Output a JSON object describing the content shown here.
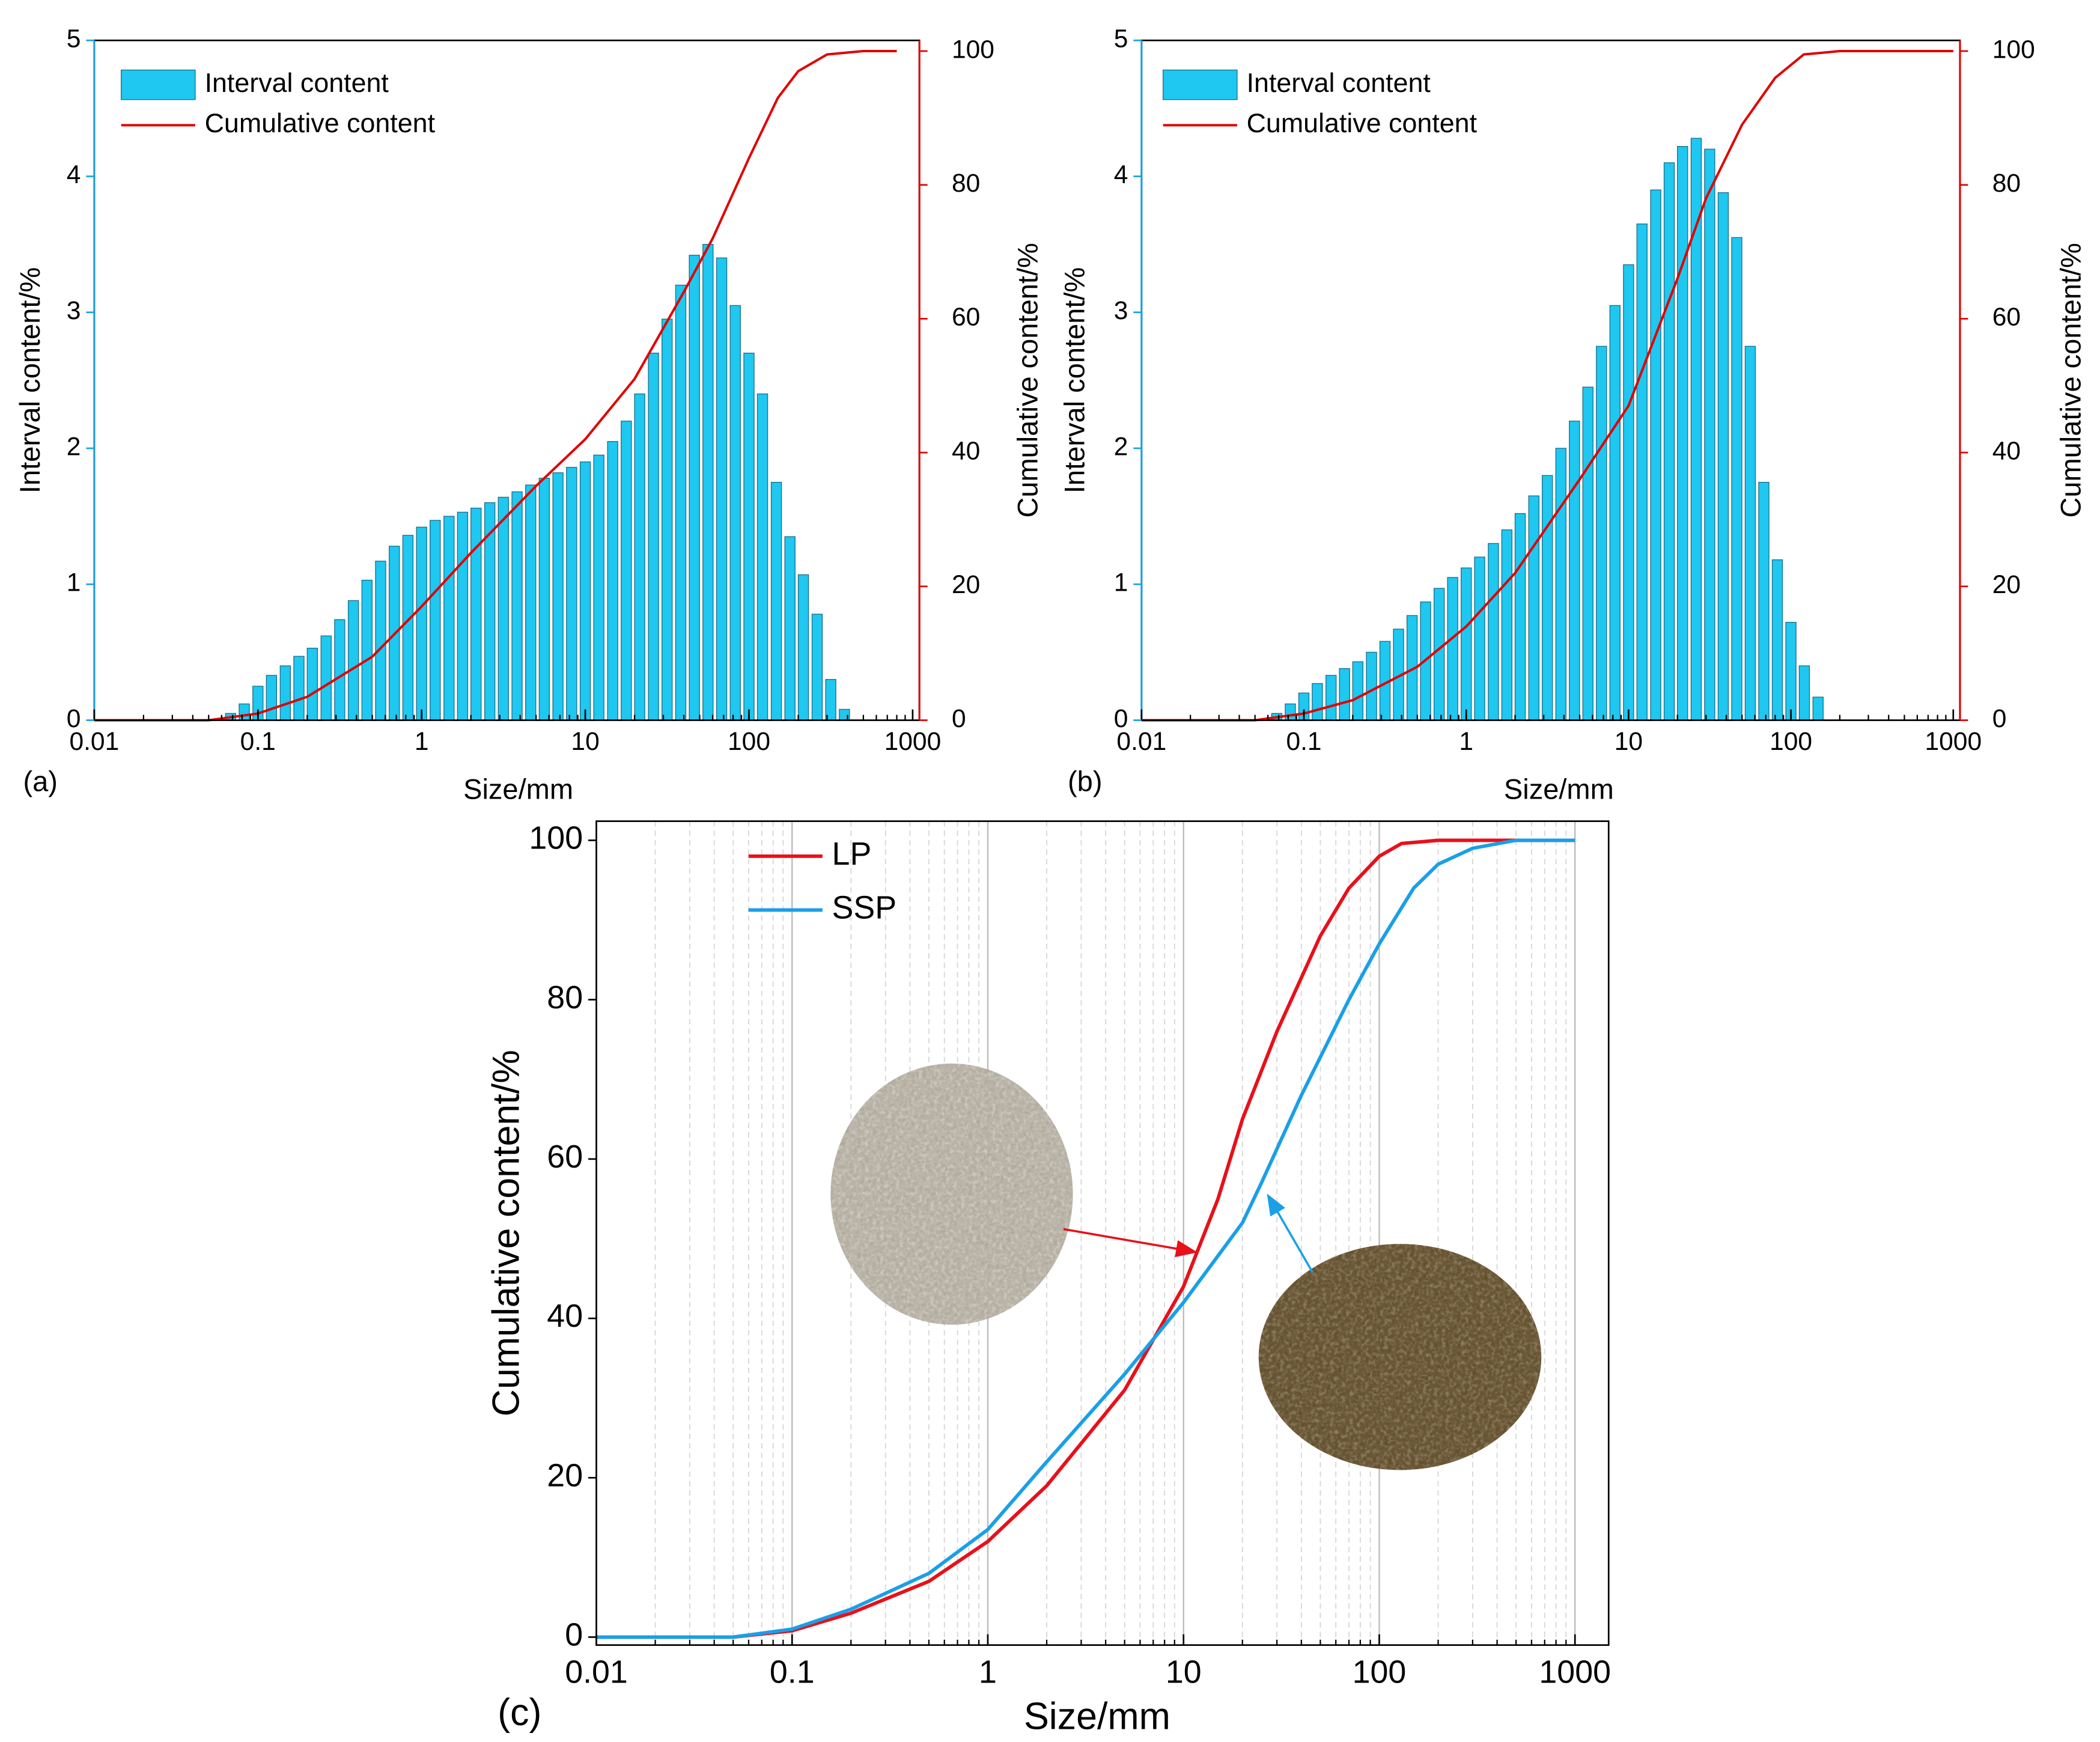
{
  "chart_data": [
    {
      "type": "combo",
      "panel": "(a)",
      "xlabel": "Size/mm",
      "ylabel": "Interval content/%",
      "y2label": "Cumulative content/%",
      "xscale": "log",
      "xlim": [
        0.01,
        1100
      ],
      "xticks": [
        0.01,
        0.1,
        1,
        10,
        100,
        1000
      ],
      "ylim": [
        0,
        5
      ],
      "yticks": [
        0,
        1,
        2,
        3,
        4,
        5
      ],
      "y2lim": [
        0,
        101.6
      ],
      "y2ticks": [
        0,
        20,
        40,
        60,
        80,
        100
      ],
      "ycolor": "#1a9fe0",
      "y2color": "#e00000",
      "legend": "upper left",
      "series": [
        {
          "name": "Interval content",
          "color": "#1ec8f0",
          "x": [
            0.0681,
            0.0825,
            0.1,
            0.121,
            0.147,
            0.178,
            0.215,
            0.261,
            0.316,
            0.383,
            0.464,
            0.562,
            0.681,
            0.825,
            1,
            1.21,
            1.47,
            1.78,
            2.15,
            2.61,
            3.16,
            3.83,
            4.64,
            5.62,
            6.81,
            8.25,
            10,
            12.1,
            14.7,
            17.8,
            21.5,
            26.1,
            31.6,
            38.3,
            46.4,
            56.2,
            68.1,
            82.5,
            100,
            121,
            147,
            178,
            215,
            261,
            316,
            383
          ],
          "values": [
            0.05,
            0.12,
            0.25,
            0.33,
            0.4,
            0.47,
            0.53,
            0.62,
            0.74,
            0.88,
            1.03,
            1.17,
            1.28,
            1.36,
            1.42,
            1.47,
            1.5,
            1.53,
            1.56,
            1.6,
            1.64,
            1.68,
            1.73,
            1.78,
            1.82,
            1.86,
            1.9,
            1.95,
            2.05,
            2.2,
            2.4,
            2.7,
            2.95,
            3.2,
            3.42,
            3.5,
            3.4,
            3.05,
            2.7,
            2.4,
            1.75,
            1.35,
            1.07,
            0.78,
            0.3,
            0.08
          ]
        },
        {
          "name": "Cumulative content",
          "color": "#e00000",
          "axis": "y2",
          "x": [
            0.01,
            0.05,
            0.1,
            0.2,
            0.5,
            1,
            2,
            5,
            10,
            20,
            40,
            60,
            100,
            150,
            200,
            300,
            500,
            800
          ],
          "values": [
            0,
            0,
            1,
            3.5,
            9.5,
            17,
            25,
            35,
            42,
            51,
            64,
            72,
            84,
            93,
            97,
            99.5,
            100,
            100
          ]
        }
      ]
    },
    {
      "type": "combo",
      "panel": "(b)",
      "xlabel": "Size/mm",
      "ylabel": "Interval content/%",
      "y2label": "Cumulative content/%",
      "xscale": "log",
      "xlim": [
        0.01,
        1100
      ],
      "xticks": [
        0.01,
        0.1,
        1,
        10,
        100,
        1000
      ],
      "ylim": [
        0,
        5
      ],
      "yticks": [
        0,
        1,
        2,
        3,
        4,
        5
      ],
      "y2lim": [
        0,
        101.6
      ],
      "y2ticks": [
        0,
        20,
        40,
        60,
        80,
        100
      ],
      "ycolor": "#1a9fe0",
      "y2color": "#e00000",
      "legend": "upper left",
      "series": [
        {
          "name": "Interval content",
          "color": "#1ec8f0",
          "x": [
            0.0681,
            0.0825,
            0.1,
            0.121,
            0.147,
            0.178,
            0.215,
            0.261,
            0.316,
            0.383,
            0.464,
            0.562,
            0.681,
            0.825,
            1,
            1.21,
            1.47,
            1.78,
            2.15,
            2.61,
            3.16,
            3.83,
            4.64,
            5.62,
            6.81,
            8.25,
            10,
            12.1,
            14.7,
            17.8,
            21.5,
            26.1,
            31.6,
            38.3,
            46.4,
            56.2,
            68.1,
            82.5,
            100,
            121,
            147
          ],
          "values": [
            0.05,
            0.12,
            0.2,
            0.27,
            0.33,
            0.38,
            0.43,
            0.5,
            0.58,
            0.67,
            0.77,
            0.87,
            0.97,
            1.05,
            1.12,
            1.2,
            1.3,
            1.4,
            1.52,
            1.65,
            1.8,
            2.0,
            2.2,
            2.45,
            2.75,
            3.05,
            3.35,
            3.65,
            3.9,
            4.1,
            4.22,
            4.28,
            4.2,
            3.88,
            3.55,
            2.75,
            1.75,
            1.18,
            0.72,
            0.4,
            0.17
          ]
        },
        {
          "name": "Cumulative content",
          "color": "#e00000",
          "axis": "y2",
          "x": [
            0.01,
            0.05,
            0.1,
            0.2,
            0.5,
            1,
            2,
            5,
            10,
            20,
            30,
            50,
            80,
            120,
            200,
            1000
          ],
          "values": [
            0,
            0,
            1,
            3,
            8,
            14,
            22,
            36,
            47,
            66,
            78,
            89,
            96,
            99.5,
            100,
            100
          ]
        }
      ]
    },
    {
      "type": "line",
      "panel": "(c)",
      "xlabel": "Size/mm",
      "ylabel": "Cumulative content/%",
      "xscale": "log",
      "xlim": [
        0.01,
        1486
      ],
      "xticks": [
        0.01,
        0.1,
        1,
        10,
        100,
        1000
      ],
      "ylim": [
        -1,
        102.4
      ],
      "yticks": [
        0,
        20,
        40,
        60,
        80,
        100
      ],
      "grid": true,
      "legend": "upper left",
      "series": [
        {
          "name": "LP",
          "color": "#e8101a",
          "x": [
            0.01,
            0.05,
            0.1,
            0.2,
            0.5,
            1,
            2,
            5,
            10,
            15,
            20,
            30,
            50,
            70,
            100,
            130,
            200,
            1000
          ],
          "values": [
            0,
            0,
            0.8,
            3,
            7,
            12,
            19,
            31,
            44,
            55,
            65,
            76,
            88,
            94,
            98,
            99.6,
            100,
            100
          ]
        },
        {
          "name": "SSP",
          "color": "#1a9fe8",
          "x": [
            0.01,
            0.05,
            0.1,
            0.2,
            0.5,
            1,
            2,
            5,
            10,
            20,
            25,
            40,
            70,
            100,
            150,
            200,
            300,
            500,
            1000
          ],
          "values": [
            0,
            0,
            1,
            3.5,
            8,
            13.5,
            22,
            33,
            42,
            52,
            57,
            68,
            80,
            87,
            94,
            97,
            99,
            100,
            100
          ]
        }
      ]
    }
  ]
}
